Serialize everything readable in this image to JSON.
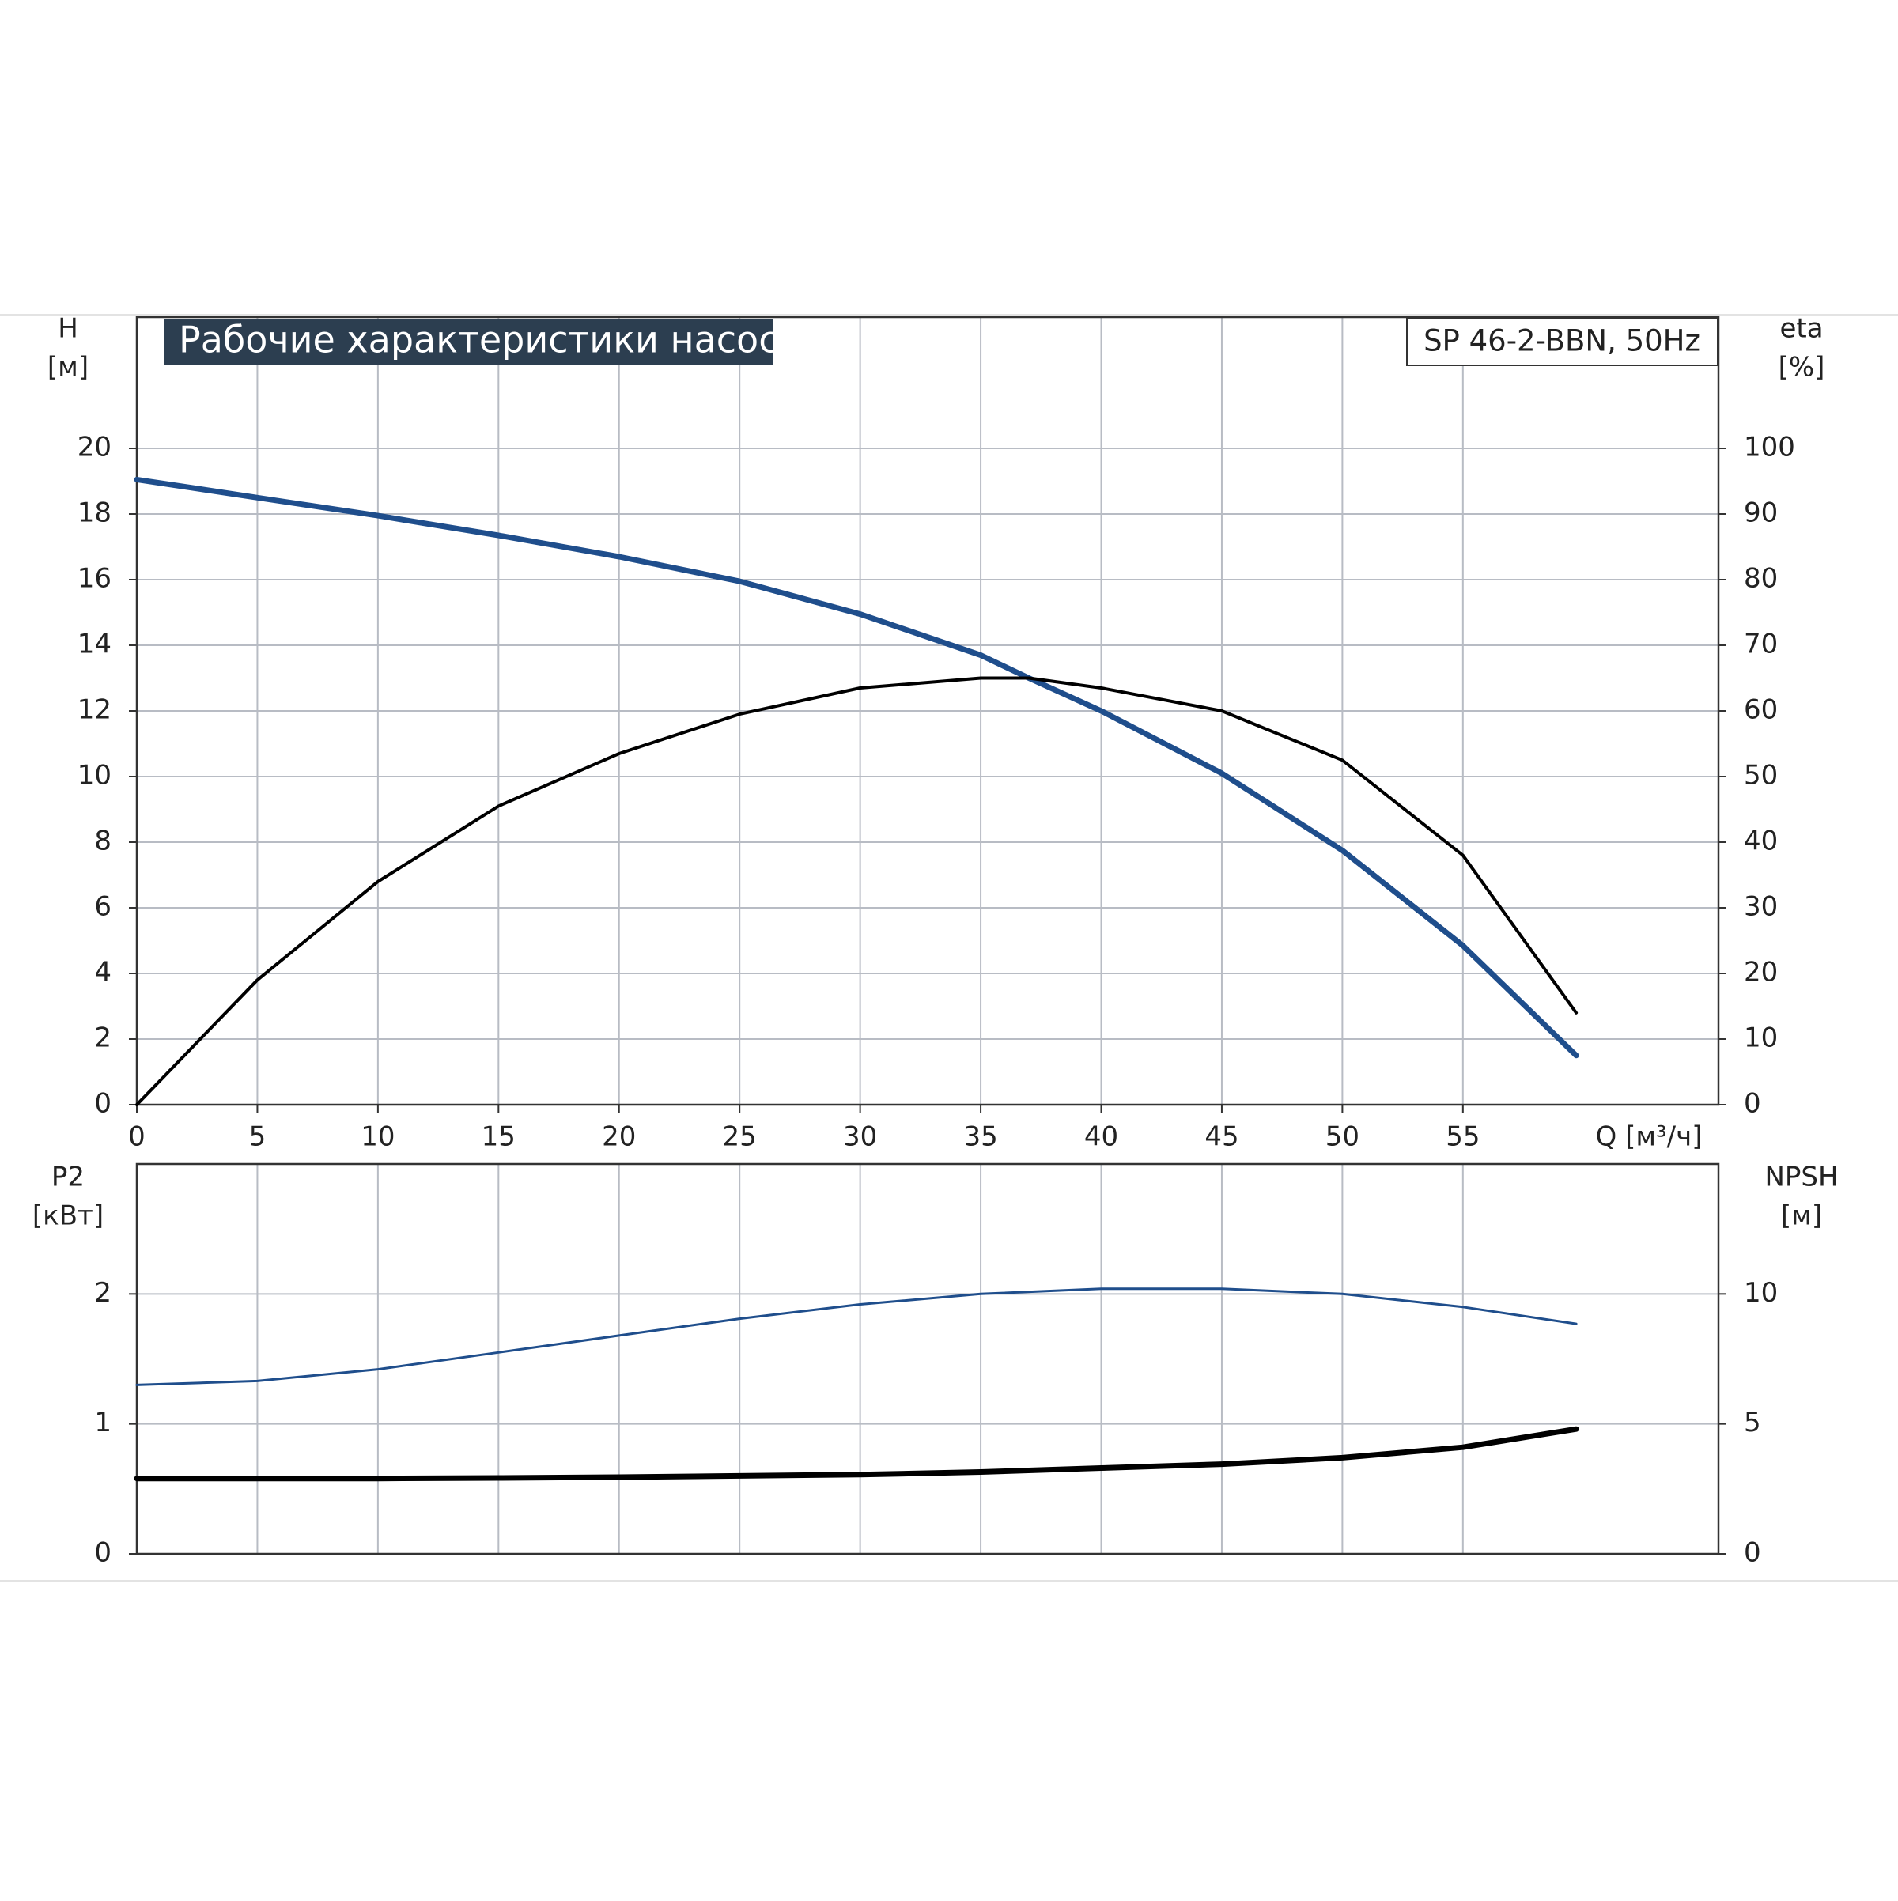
{
  "chart_data": [
    {
      "type": "line",
      "title": "Рабочие характеристики насоса",
      "subtitle": "SP 46-2-BBN, 50Hz",
      "ylabel": [
        "H",
        "[м]"
      ],
      "y2label": [
        "eta",
        "[%]"
      ],
      "xlabel": "Q [м³/ч]",
      "x": [
        0,
        5,
        10,
        15,
        20,
        25,
        30,
        35,
        37,
        40,
        45,
        50,
        55,
        59.7
      ],
      "xlim": [
        0,
        65.6
      ],
      "xticks": [
        0,
        5,
        10,
        15,
        20,
        25,
        30,
        35,
        40,
        45,
        50,
        55
      ],
      "ylim": [
        0,
        24
      ],
      "yticks": [
        0,
        2,
        4,
        6,
        8,
        10,
        12,
        14,
        16,
        18,
        20
      ],
      "y2lim": [
        0,
        120
      ],
      "y2ticks": [
        0,
        10,
        20,
        30,
        40,
        50,
        60,
        70,
        80,
        90,
        100
      ],
      "grid": true,
      "series": [
        {
          "color": "#1f4e8c",
          "values": [
            19.05,
            18.5,
            17.95,
            17.35,
            16.7,
            15.95,
            14.95,
            13.7,
            13.0,
            12.0,
            10.1,
            7.75,
            4.85,
            1.5
          ]
        },
        {
          "color": "#000000",
          "axis": "y2",
          "values": [
            0,
            19,
            34,
            45.5,
            53.5,
            59.5,
            63.5,
            65,
            65,
            63.5,
            60,
            52.5,
            38,
            14
          ]
        }
      ]
    },
    {
      "type": "line",
      "ylabel": [
        "P2",
        "[кВт]"
      ],
      "y2label": [
        "NPSH",
        "[м]"
      ],
      "x": [
        0,
        5,
        10,
        15,
        20,
        25,
        30,
        35,
        40,
        45,
        50,
        55,
        59.7
      ],
      "xlim": [
        0,
        65.6
      ],
      "ylim": [
        0,
        3
      ],
      "yticks": [
        0,
        1,
        2
      ],
      "y2lim": [
        0,
        15
      ],
      "y2ticks": [
        0,
        5,
        10
      ],
      "grid": true,
      "series": [
        {
          "color": "#1f4e8c",
          "values": [
            1.3,
            1.33,
            1.42,
            1.55,
            1.68,
            1.81,
            1.92,
            2.0,
            2.04,
            2.04,
            2.0,
            1.9,
            1.77
          ]
        },
        {
          "color": "#000000",
          "axis": "y2",
          "values": [
            2.9,
            2.9,
            2.9,
            2.92,
            2.95,
            3.0,
            3.05,
            3.15,
            3.3,
            3.45,
            3.7,
            4.1,
            4.8
          ]
        }
      ]
    }
  ]
}
